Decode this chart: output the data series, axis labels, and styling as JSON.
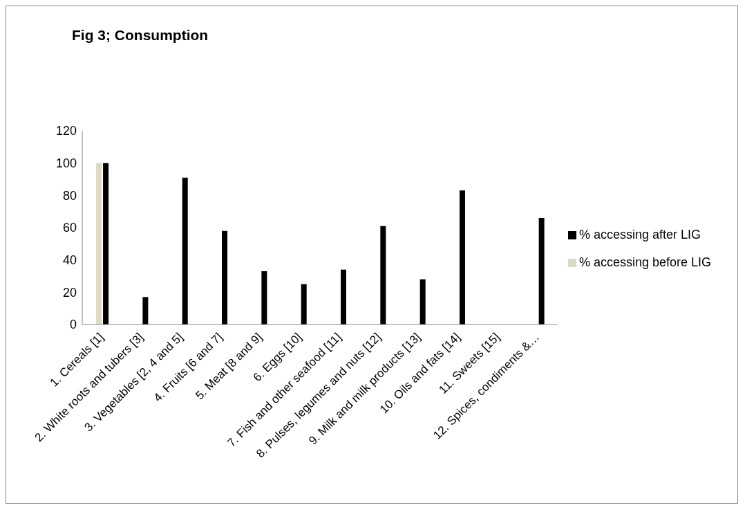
{
  "chart_data": {
    "type": "bar",
    "title": "Fig  3; Consumption",
    "categories": [
      "1. Cereals [1]",
      "2. White roots and tubers [3]",
      "3. Vegetables [2, 4 and 5]",
      "4. Fruits [6 and 7]",
      "5. Meat [8 and 9]",
      "6. Eggs [10]",
      "7. Fish and other seafood [11]",
      "8. Pulses, legumes and nuts [12]",
      "9. Milk and milk products [13]",
      "10. Oils and fats [14]",
      "11. Sweets [15]",
      "12. Spices, condiments &…"
    ],
    "series": [
      {
        "name": "% accessing before LIG",
        "color": "#ddd9c3",
        "values": [
          100,
          null,
          null,
          null,
          null,
          null,
          null,
          null,
          null,
          null,
          null,
          null
        ]
      },
      {
        "name": "% accessing after LIG",
        "color": "#000000",
        "values": [
          100,
          17,
          91,
          58,
          33,
          25,
          34,
          61,
          28,
          83,
          null,
          66
        ]
      }
    ],
    "ylim": [
      0,
      120
    ],
    "yticks": [
      0,
      20,
      40,
      60,
      80,
      100,
      120
    ],
    "grid": false,
    "legend": "right"
  }
}
